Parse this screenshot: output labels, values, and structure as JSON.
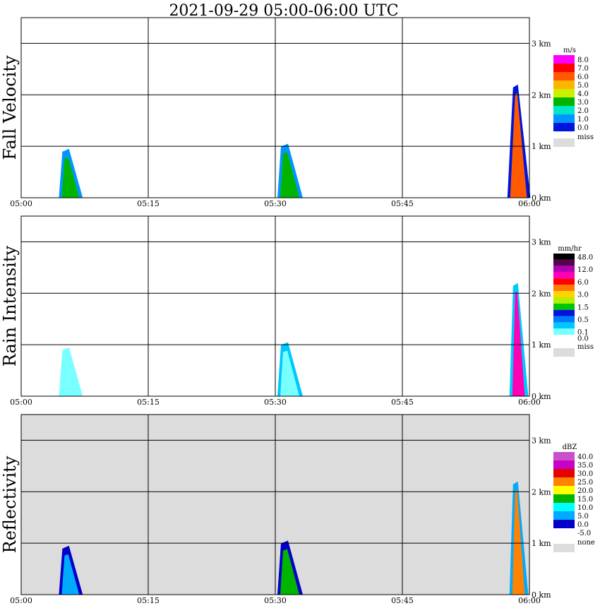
{
  "title": "2021-09-29   05:00-06:00 UTC",
  "time_labels": [
    "05:00",
    "05:15",
    "05:30",
    "05:45",
    "06:00"
  ],
  "height_labels": [
    "0 km",
    "1 km",
    "2 km",
    "3 km"
  ],
  "chart_data": [
    {
      "type": "heatmap",
      "title": "Fall Velocity",
      "unit": "m/s",
      "x_range": [
        "05:00",
        "06:00"
      ],
      "ylim_km": [
        0,
        3.5
      ],
      "grid": true,
      "legend_position": "right",
      "missing_label": "miss",
      "background": "#ffffff",
      "colorbar": [
        {
          "label": "8.0",
          "color": "#ff00ff"
        },
        {
          "label": "7.0",
          "color": "#ff0000"
        },
        {
          "label": "6.0",
          "color": "#ff5a00"
        },
        {
          "label": "5.0",
          "color": "#ffb400"
        },
        {
          "label": "4.0",
          "color": "#c8f000"
        },
        {
          "label": "3.0",
          "color": "#00b400"
        },
        {
          "label": "2.0",
          "color": "#00e6c8"
        },
        {
          "label": "1.0",
          "color": "#0096ff"
        },
        {
          "label": "0.0",
          "color": "#0014dc"
        }
      ],
      "echoes": [
        {
          "t_min": 5.2,
          "base_km": 0.0,
          "top_km": 0.95,
          "lean": 2.2,
          "color": "#00b400",
          "rim": "#0096ff"
        },
        {
          "t_min": 31.0,
          "base_km": 0.0,
          "top_km": 1.05,
          "lean": 2.5,
          "color": "#00b400",
          "rim": "#0096ff"
        },
        {
          "t_min": 58.4,
          "base_km": 0.0,
          "top_km": 2.2,
          "lean": 1.2,
          "color": "#ff5a00",
          "rim": "#0014dc"
        }
      ]
    },
    {
      "type": "heatmap",
      "title": "Rain Intensity",
      "unit": "mm/hr",
      "x_range": [
        "05:00",
        "06:00"
      ],
      "ylim_km": [
        0,
        3.5
      ],
      "grid": true,
      "legend_position": "right",
      "missing_label": "miss",
      "background": "#ffffff",
      "colorbar": [
        {
          "label": "48.0",
          "color": "#000000"
        },
        {
          "label": "",
          "color": "#5a0050"
        },
        {
          "label": "12.0",
          "color": "#b400b4"
        },
        {
          "label": "",
          "color": "#ff00b4"
        },
        {
          "label": "6.0",
          "color": "#ff0000"
        },
        {
          "label": "",
          "color": "#ff7800"
        },
        {
          "label": "3.0",
          "color": "#ffd200"
        },
        {
          "label": "",
          "color": "#b4f000"
        },
        {
          "label": "1.5",
          "color": "#00c800"
        },
        {
          "label": "",
          "color": "#0014dc"
        },
        {
          "label": "0.5",
          "color": "#0078ff"
        },
        {
          "label": "",
          "color": "#00c8ff"
        },
        {
          "label": "0.1",
          "color": "#78ffff"
        },
        {
          "label": "0.0",
          "color": "#ffffff"
        }
      ],
      "echoes": [
        {
          "t_min": 5.2,
          "base_km": 0.0,
          "top_km": 0.95,
          "lean": 2.2,
          "color": "#78ffff",
          "rim": "#78ffff"
        },
        {
          "t_min": 31.0,
          "base_km": 0.0,
          "top_km": 1.05,
          "lean": 2.5,
          "color": "#78ffff",
          "rim": "#00c8ff"
        },
        {
          "t_min": 58.4,
          "base_km": 0.0,
          "top_km": 2.2,
          "lean": 1.2,
          "color": "#ff00b4",
          "rim": "#00c8ff"
        }
      ]
    },
    {
      "type": "heatmap",
      "title": "Reflectivity",
      "unit": "dBZ",
      "x_range": [
        "05:00",
        "06:00"
      ],
      "ylim_km": [
        0,
        3.5
      ],
      "grid": true,
      "legend_position": "right",
      "missing_label": "none",
      "background": "#dcdcdc",
      "colorbar": [
        {
          "label": "40.0",
          "color": "#c850c8"
        },
        {
          "label": "35.0",
          "color": "#c800c8"
        },
        {
          "label": "30.0",
          "color": "#e60000"
        },
        {
          "label": "25.0",
          "color": "#ff8200"
        },
        {
          "label": "20.0",
          "color": "#ffff00"
        },
        {
          "label": "15.0",
          "color": "#00b400"
        },
        {
          "label": "10.0",
          "color": "#00ffff"
        },
        {
          "label": "5.0",
          "color": "#00aaff"
        },
        {
          "label": "0.0",
          "color": "#0000c8"
        },
        {
          "label": "-5.0",
          "color": "#ffffff"
        }
      ],
      "echoes": [
        {
          "t_min": 5.2,
          "base_km": 0.0,
          "top_km": 0.95,
          "lean": 2.2,
          "color": "#00aaff",
          "rim": "#0000c8"
        },
        {
          "t_min": 31.0,
          "base_km": 0.0,
          "top_km": 1.05,
          "lean": 2.5,
          "color": "#00b400",
          "rim": "#0000c8"
        },
        {
          "t_min": 58.4,
          "base_km": 0.0,
          "top_km": 2.2,
          "lean": 1.2,
          "color": "#ff8200",
          "rim": "#00aaff"
        }
      ]
    }
  ]
}
